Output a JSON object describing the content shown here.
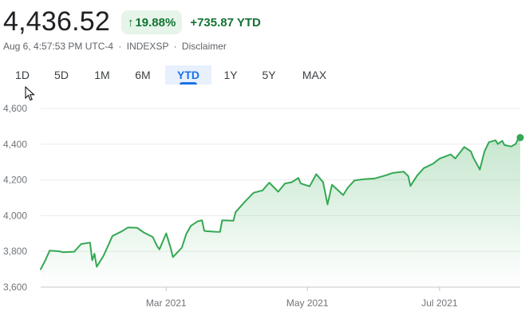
{
  "header": {
    "price": "4,436.52",
    "percent_change": "19.88%",
    "abs_change": "+735.87 YTD",
    "up_arrow_icon": "arrow-up-icon",
    "positive_color": "#137333",
    "badge_bg": "#e6f4ea"
  },
  "subline": {
    "timestamp": "Aug 6, 4:57:53 PM UTC-4",
    "exchange": "INDEXSP",
    "disclaimer": "Disclaimer",
    "separator": "·"
  },
  "ranges": [
    {
      "label": "1D",
      "active": false
    },
    {
      "label": "5D",
      "active": false
    },
    {
      "label": "1M",
      "active": false
    },
    {
      "label": "6M",
      "active": false
    },
    {
      "label": "YTD",
      "active": true
    },
    {
      "label": "1Y",
      "active": false
    },
    {
      "label": "5Y",
      "active": false
    },
    {
      "label": "MAX",
      "active": false
    }
  ],
  "chart_data": {
    "type": "area",
    "line_color": "#34a853",
    "ylim": [
      3600,
      4600
    ],
    "y_ticks": [
      3600,
      3800,
      4000,
      4200,
      4400,
      4600
    ],
    "y_tick_labels": [
      "3,600",
      "3,800",
      "4,000",
      "4,200",
      "4,400",
      "4,600"
    ],
    "x_tick_labels": [
      {
        "label": "Mar 2021",
        "date": "2021-03-01"
      },
      {
        "label": "May 2021",
        "date": "2021-05-03"
      },
      {
        "label": "Jul 2021",
        "date": "2021-07-01"
      }
    ],
    "x_range": [
      "2021-01-04",
      "2021-08-06"
    ],
    "grid": "horizontal",
    "series": [
      {
        "points": [
          [
            "2021-01-04",
            3700
          ],
          [
            "2021-01-06",
            3748
          ],
          [
            "2021-01-08",
            3804
          ],
          [
            "2021-01-12",
            3801
          ],
          [
            "2021-01-14",
            3795
          ],
          [
            "2021-01-19",
            3798
          ],
          [
            "2021-01-22",
            3841
          ],
          [
            "2021-01-26",
            3849
          ],
          [
            "2021-01-27",
            3750
          ],
          [
            "2021-01-28",
            3787
          ],
          [
            "2021-01-29",
            3714
          ],
          [
            "2021-02-01",
            3774
          ],
          [
            "2021-02-03",
            3830
          ],
          [
            "2021-02-05",
            3886
          ],
          [
            "2021-02-09",
            3911
          ],
          [
            "2021-02-12",
            3934
          ],
          [
            "2021-02-16",
            3932
          ],
          [
            "2021-02-19",
            3906
          ],
          [
            "2021-02-23",
            3881
          ],
          [
            "2021-02-25",
            3829
          ],
          [
            "2021-02-26",
            3811
          ],
          [
            "2021-03-01",
            3901
          ],
          [
            "2021-03-03",
            3819
          ],
          [
            "2021-03-04",
            3768
          ],
          [
            "2021-03-08",
            3821
          ],
          [
            "2021-03-10",
            3898
          ],
          [
            "2021-03-12",
            3943
          ],
          [
            "2021-03-15",
            3968
          ],
          [
            "2021-03-17",
            3974
          ],
          [
            "2021-03-18",
            3915
          ],
          [
            "2021-03-19",
            3913
          ],
          [
            "2021-03-23",
            3910
          ],
          [
            "2021-03-25",
            3909
          ],
          [
            "2021-03-26",
            3974
          ],
          [
            "2021-03-31",
            3972
          ],
          [
            "2021-04-01",
            4020
          ],
          [
            "2021-04-05",
            4077
          ],
          [
            "2021-04-09",
            4128
          ],
          [
            "2021-04-13",
            4141
          ],
          [
            "2021-04-16",
            4185
          ],
          [
            "2021-04-20",
            4134
          ],
          [
            "2021-04-23",
            4180
          ],
          [
            "2021-04-26",
            4187
          ],
          [
            "2021-04-29",
            4211
          ],
          [
            "2021-04-30",
            4181
          ],
          [
            "2021-05-04",
            4164
          ],
          [
            "2021-05-07",
            4232
          ],
          [
            "2021-05-10",
            4188
          ],
          [
            "2021-05-12",
            4063
          ],
          [
            "2021-05-14",
            4173
          ],
          [
            "2021-05-18",
            4127
          ],
          [
            "2021-05-19",
            4115
          ],
          [
            "2021-05-21",
            4156
          ],
          [
            "2021-05-24",
            4197
          ],
          [
            "2021-05-28",
            4204
          ],
          [
            "2021-06-02",
            4208
          ],
          [
            "2021-06-07",
            4226
          ],
          [
            "2021-06-10",
            4239
          ],
          [
            "2021-06-15",
            4246
          ],
          [
            "2021-06-17",
            4222
          ],
          [
            "2021-06-18",
            4166
          ],
          [
            "2021-06-21",
            4224
          ],
          [
            "2021-06-24",
            4266
          ],
          [
            "2021-06-28",
            4290
          ],
          [
            "2021-07-01",
            4319
          ],
          [
            "2021-07-06",
            4343
          ],
          [
            "2021-07-08",
            4320
          ],
          [
            "2021-07-12",
            4384
          ],
          [
            "2021-07-15",
            4360
          ],
          [
            "2021-07-16",
            4327
          ],
          [
            "2021-07-19",
            4258
          ],
          [
            "2021-07-21",
            4358
          ],
          [
            "2021-07-23",
            4411
          ],
          [
            "2021-07-26",
            4422
          ],
          [
            "2021-07-27",
            4401
          ],
          [
            "2021-07-29",
            4419
          ],
          [
            "2021-07-30",
            4395
          ],
          [
            "2021-08-02",
            4387
          ],
          [
            "2021-08-04",
            4402
          ],
          [
            "2021-08-05",
            4429
          ],
          [
            "2021-08-06",
            4437
          ]
        ]
      }
    ]
  }
}
